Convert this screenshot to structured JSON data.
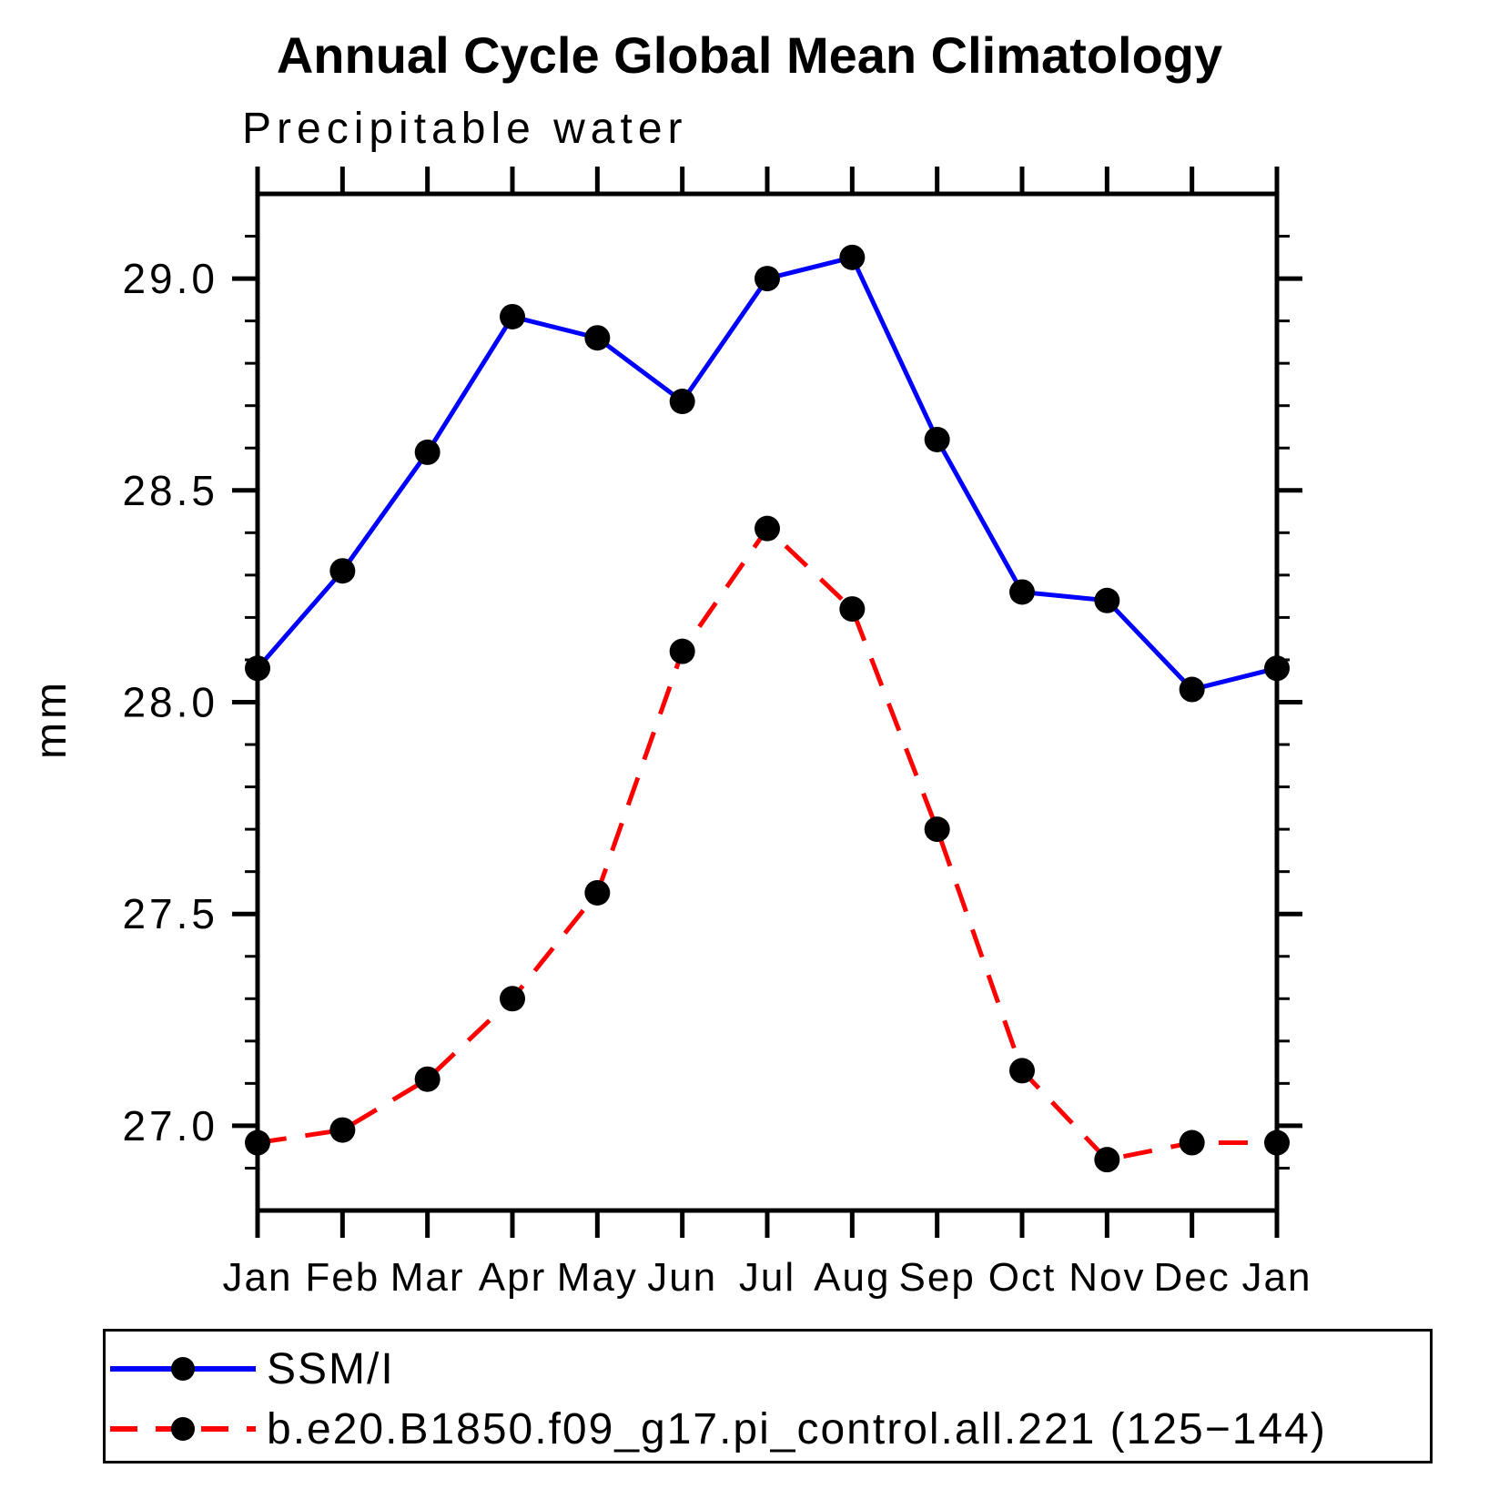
{
  "title": "Annual Cycle Global Mean Climatology",
  "subtitle": "Precipitable water",
  "ylabel": "mm",
  "colors": {
    "axis": "#000000",
    "text": "#000000",
    "series1": "#0000ff",
    "series2": "#ff0000",
    "marker": "#000000",
    "background": "#ffffff"
  },
  "legend": {
    "items": [
      {
        "label": "SSM/I",
        "color": "#0000ff",
        "style": "solid",
        "marker": "filled-circle"
      },
      {
        "label": "b.e20.B1850.f09_g17.pi_control.all.221 (125−144)",
        "color": "#ff0000",
        "style": "dashed",
        "marker": "filled-circle"
      }
    ]
  },
  "chart_data": {
    "type": "line",
    "title": "Annual Cycle Global Mean Climatology",
    "subtitle": "Precipitable water",
    "xlabel": "",
    "ylabel": "mm",
    "categories": [
      "Jan",
      "Feb",
      "Mar",
      "Apr",
      "May",
      "Jun",
      "Jul",
      "Aug",
      "Sep",
      "Oct",
      "Nov",
      "Dec",
      "Jan"
    ],
    "series": [
      {
        "name": "SSM/I",
        "color": "#0000ff",
        "style": "solid",
        "marker": "circle",
        "values": [
          28.08,
          28.31,
          28.59,
          28.91,
          28.86,
          28.71,
          29.0,
          29.05,
          28.62,
          28.26,
          28.24,
          28.03,
          28.08
        ]
      },
      {
        "name": "b.e20.B1850.f09_g17.pi_control.all.221 (125−144)",
        "color": "#ff0000",
        "style": "dashed",
        "marker": "circle",
        "values": [
          26.96,
          26.99,
          27.11,
          27.3,
          27.55,
          28.12,
          28.41,
          28.22,
          27.7,
          27.13,
          26.92,
          26.96,
          26.96
        ]
      }
    ],
    "ylim": [
      26.8,
      29.2
    ],
    "ytick_major": [
      27.0,
      27.5,
      28.0,
      28.5,
      29.0
    ],
    "ytick_labels": [
      "27.0",
      "27.5",
      "28.0",
      "28.5",
      "29.0"
    ],
    "ytick_minor_step": 0.1,
    "grid": false,
    "legend_position": "bottom"
  }
}
